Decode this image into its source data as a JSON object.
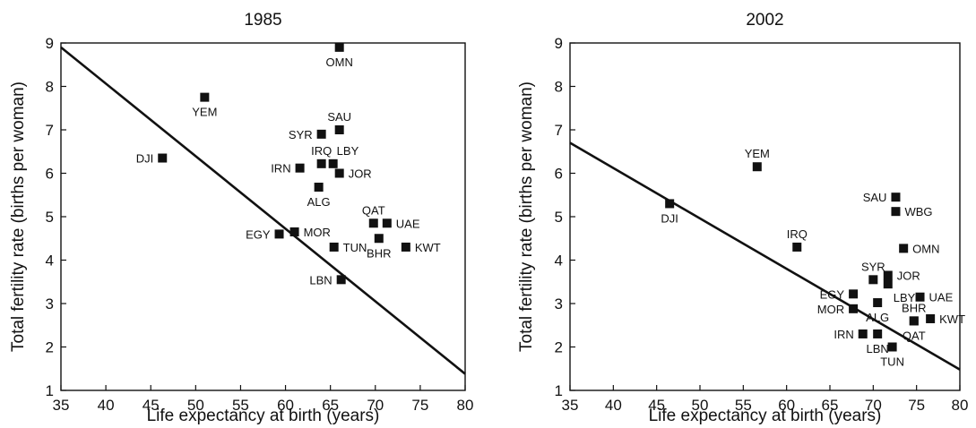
{
  "chart_data": [
    {
      "type": "scatter",
      "title": "1985",
      "xlabel": "Life expectancy at birth (years)",
      "ylabel": "Total fertility rate (births per woman)",
      "xlim": [
        35,
        80
      ],
      "ylim": [
        1,
        9
      ],
      "xticks": [
        35,
        40,
        45,
        50,
        55,
        60,
        65,
        70,
        75,
        80
      ],
      "yticks": [
        1,
        2,
        3,
        4,
        5,
        6,
        7,
        8,
        9
      ],
      "grid": false,
      "trendline": {
        "x": [
          35,
          80
        ],
        "y": [
          8.9,
          1.38
        ]
      },
      "points": [
        {
          "label": "OMN",
          "x": 66.0,
          "y": 8.9,
          "pos": "below"
        },
        {
          "label": "YEM",
          "x": 51.0,
          "y": 7.75,
          "pos": "below"
        },
        {
          "label": "DJI",
          "x": 46.3,
          "y": 6.35,
          "pos": "left"
        },
        {
          "label": "SAU",
          "x": 66.0,
          "y": 7.0,
          "pos": "above"
        },
        {
          "label": "SYR",
          "x": 64.0,
          "y": 6.9,
          "pos": "left"
        },
        {
          "label": "IRQ",
          "x": 64.0,
          "y": 6.22,
          "pos": "above"
        },
        {
          "label": "LBY",
          "x": 65.3,
          "y": 6.22,
          "pos": "above-right"
        },
        {
          "label": "IRN",
          "x": 61.6,
          "y": 6.12,
          "pos": "left"
        },
        {
          "label": "JOR",
          "x": 66.0,
          "y": 6.0,
          "pos": "right"
        },
        {
          "label": "ALG",
          "x": 63.7,
          "y": 5.68,
          "pos": "below"
        },
        {
          "label": "QAT",
          "x": 69.8,
          "y": 4.85,
          "pos": "above"
        },
        {
          "label": "UAE",
          "x": 71.3,
          "y": 4.85,
          "pos": "right"
        },
        {
          "label": "EGY",
          "x": 59.3,
          "y": 4.6,
          "pos": "left"
        },
        {
          "label": "MOR",
          "x": 61.0,
          "y": 4.65,
          "pos": "right"
        },
        {
          "label": "BHR",
          "x": 70.4,
          "y": 4.5,
          "pos": "below"
        },
        {
          "label": "TUN",
          "x": 65.4,
          "y": 4.3,
          "pos": "right"
        },
        {
          "label": "KWT",
          "x": 73.4,
          "y": 4.3,
          "pos": "right"
        },
        {
          "label": "LBN",
          "x": 66.2,
          "y": 3.55,
          "pos": "left"
        }
      ]
    },
    {
      "type": "scatter",
      "title": "2002",
      "xlabel": "Life expectancy at birth (years)",
      "ylabel": "Total fertility rate (births per woman)",
      "xlim": [
        35,
        80
      ],
      "ylim": [
        1,
        9
      ],
      "xticks": [
        35,
        40,
        45,
        50,
        55,
        60,
        65,
        70,
        75,
        80
      ],
      "yticks": [
        1,
        2,
        3,
        4,
        5,
        6,
        7,
        8,
        9
      ],
      "grid": false,
      "trendline": {
        "x": [
          35,
          80
        ],
        "y": [
          6.7,
          1.48
        ]
      },
      "points": [
        {
          "label": "YEM",
          "x": 56.6,
          "y": 6.15,
          "pos": "above"
        },
        {
          "label": "DJI",
          "x": 46.5,
          "y": 5.3,
          "pos": "below"
        },
        {
          "label": "SAU",
          "x": 72.6,
          "y": 5.45,
          "pos": "left"
        },
        {
          "label": "WBG",
          "x": 72.6,
          "y": 5.12,
          "pos": "right"
        },
        {
          "label": "IRQ",
          "x": 61.2,
          "y": 4.3,
          "pos": "above"
        },
        {
          "label": "OMN",
          "x": 73.5,
          "y": 4.27,
          "pos": "right"
        },
        {
          "label": "SYR",
          "x": 70.0,
          "y": 3.55,
          "pos": "above"
        },
        {
          "label": "JOR",
          "x": 71.7,
          "y": 3.65,
          "pos": "right"
        },
        {
          "label": "LBY",
          "x": 71.7,
          "y": 3.45,
          "pos": "below-right"
        },
        {
          "label": "EGY",
          "x": 67.7,
          "y": 3.22,
          "pos": "left"
        },
        {
          "label": "UAE",
          "x": 75.4,
          "y": 3.15,
          "pos": "right"
        },
        {
          "label": "ALG",
          "x": 70.5,
          "y": 3.02,
          "pos": "below"
        },
        {
          "label": "MOR",
          "x": 67.7,
          "y": 2.88,
          "pos": "left"
        },
        {
          "label": "BHR",
          "x": 74.7,
          "y": 2.6,
          "pos": "above"
        },
        {
          "label": "KWT",
          "x": 76.6,
          "y": 2.65,
          "pos": "right"
        },
        {
          "label": "QAT",
          "x": 74.7,
          "y": 2.6,
          "pos": "below"
        },
        {
          "label": "IRN",
          "x": 68.8,
          "y": 2.3,
          "pos": "left"
        },
        {
          "label": "LBN",
          "x": 70.5,
          "y": 2.3,
          "pos": "below"
        },
        {
          "label": "TUN",
          "x": 72.2,
          "y": 2.0,
          "pos": "below"
        }
      ]
    }
  ]
}
